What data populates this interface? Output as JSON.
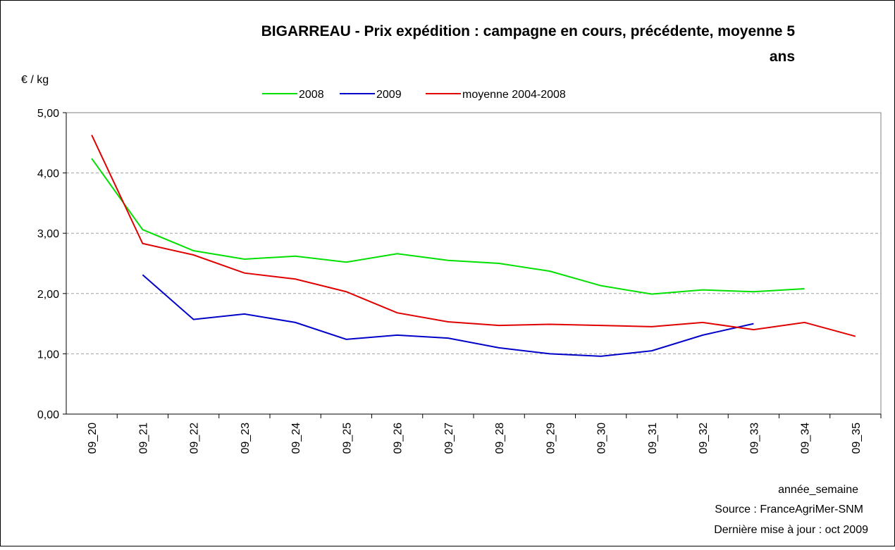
{
  "chart_data": {
    "type": "line",
    "title": [
      "BIGARREAU - Prix expédition : campagne en cours, précédente, moyenne 5",
      "ans"
    ],
    "y_label": "€ / kg",
    "x_label": "année_semaine",
    "source": "Source : FranceAgriMer-SNM",
    "updated": "Dernière mise à jour : oct 2009",
    "categories": [
      "09_20",
      "09_21",
      "09_22",
      "09_23",
      "09_24",
      "09_25",
      "09_26",
      "09_27",
      "09_28",
      "09_29",
      "09_30",
      "09_31",
      "09_32",
      "09_33",
      "09_34",
      "09_35"
    ],
    "series": [
      {
        "name": "2008",
        "color": "#00e000",
        "values": [
          4.24,
          3.06,
          2.71,
          2.57,
          2.62,
          2.52,
          2.66,
          2.55,
          2.5,
          2.37,
          2.13,
          1.99,
          2.06,
          2.03,
          2.08,
          null
        ]
      },
      {
        "name": "2009",
        "color": "#0000c8",
        "values": [
          null,
          2.31,
          1.57,
          1.66,
          1.52,
          1.24,
          1.31,
          1.26,
          1.1,
          1.0,
          0.96,
          1.05,
          1.31,
          1.5,
          null,
          null
        ]
      },
      {
        "name": "moyenne 2004-2008",
        "color": "#e00000",
        "values": [
          4.63,
          2.83,
          2.64,
          2.34,
          2.24,
          2.03,
          1.68,
          1.53,
          1.47,
          1.49,
          1.47,
          1.45,
          1.52,
          1.4,
          1.52,
          1.29
        ]
      }
    ],
    "ylim": [
      0,
      5
    ],
    "yticks": [
      {
        "value": 0,
        "label": "0,00"
      },
      {
        "value": 1,
        "label": "1,00"
      },
      {
        "value": 2,
        "label": "2,00"
      },
      {
        "value": 3,
        "label": "3,00"
      },
      {
        "value": 4,
        "label": "4,00"
      },
      {
        "value": 5,
        "label": "5,00"
      }
    ],
    "grid": true,
    "legend": "top"
  }
}
